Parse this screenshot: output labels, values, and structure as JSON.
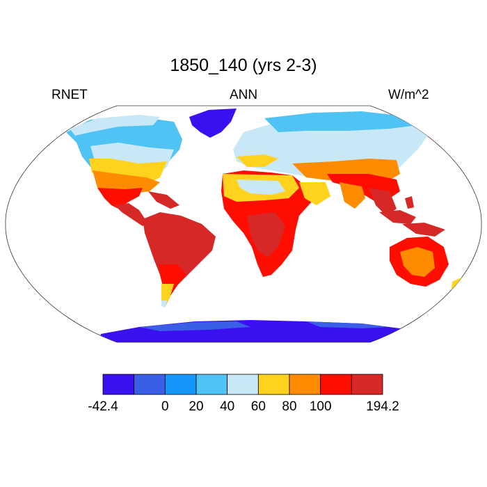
{
  "plot": {
    "title": "1850_140 (yrs 2-3)",
    "variable": "RNET",
    "season": "ANN",
    "units": "W/m^2"
  },
  "colorbar": {
    "colors": [
      "#3a0ff0",
      "#3a5ee6",
      "#1496fa",
      "#50c3f5",
      "#c8e8f8",
      "#ffd21e",
      "#ff8c00",
      "#ff0d00",
      "#d72828"
    ],
    "labels": [
      "-42.4",
      "0",
      "20",
      "40",
      "60",
      "80",
      "100",
      "194.2"
    ],
    "label_boundaries": [
      0,
      2,
      3,
      4,
      5,
      6,
      7,
      9
    ]
  },
  "map": {
    "projection": "Robinson",
    "ocean_color": "#ffffff",
    "coastline_color": "#000000"
  }
}
